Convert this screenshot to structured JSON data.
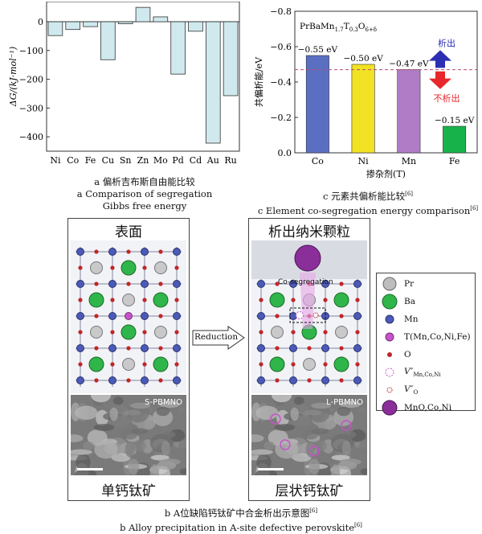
{
  "chart_a": {
    "type": "bar",
    "ylabel": "ΔG/(kJ·mol⁻¹)",
    "ylim": [
      -450,
      70
    ],
    "yticks": [
      0,
      -100,
      -200,
      -300,
      -400
    ],
    "categories": [
      "Ni",
      "Co",
      "Fe",
      "Cu",
      "Sn",
      "Zn",
      "Mo",
      "Pd",
      "Cd",
      "Au",
      "Ru"
    ],
    "values": [
      -48,
      -27,
      -17,
      -132,
      -7,
      50,
      17,
      -182,
      -33,
      -422,
      -257
    ],
    "bar_fill": "#cfe9ee",
    "caption_cn": "a  偏析吉布斯自由能比较",
    "caption_en": "a  Comparison of segregation",
    "caption_en2": "Gibbs free energy"
  },
  "chart_c": {
    "type": "bar",
    "ylabel": "共偏析能/eV",
    "xlabel": "掺杂剂(T)",
    "formula": "PrBaMn",
    "formula_sub1": "1.7",
    "formula_t": "T",
    "formula_sub2": "0.3",
    "formula_o": "O",
    "formula_sub3": "6+δ",
    "ylim": [
      0,
      -0.8
    ],
    "yticks": [
      -0.8,
      -0.6,
      -0.4,
      -0.2,
      0.0
    ],
    "ytick_labels": [
      "−0.8",
      "−0.6",
      "−0.4",
      "−0.2",
      "0.0"
    ],
    "categories": [
      "Co",
      "Ni",
      "Mn",
      "Fe"
    ],
    "values": [
      -0.55,
      -0.5,
      -0.47,
      -0.15
    ],
    "value_labels": [
      "−0.55 eV",
      "−0.50 eV",
      "−0.47 eV",
      "−0.15 eV"
    ],
    "colors": [
      "#5b6fc2",
      "#f1e323",
      "#b07cc6",
      "#18b24b"
    ],
    "threshold": -0.47,
    "arrow_up_label": "析出",
    "arrow_down_label": "不析出",
    "caption_cn": "c  元素共偏析能比较",
    "caption_cn_ref": "[6]",
    "caption_en": "c  Element co-segregation energy comparison",
    "caption_en_ref": "[6]"
  },
  "figure_b": {
    "left_title": "表面",
    "right_title": "析出纳米颗粒",
    "left_sem_label": "S-PBMNO",
    "right_sem_label": "L-PBMNO",
    "left_bottom": "单钙钛矿",
    "right_bottom": "层状钙钛矿",
    "arrow_label": "Reduction",
    "coseg_label": "Co-segregation",
    "legend": {
      "pr": "Pr",
      "ba": "Ba",
      "mn": "Mn",
      "t": "T(Mn,Co,Ni,Fe)",
      "o": "O",
      "v1": "V″",
      "v1_sub": "Mn,Co,Ni",
      "v2": "V″",
      "v2_sub": "O",
      "mno": "MnO,Co,Ni"
    },
    "caption_cn": "b  A位缺陷钙钛矿中合金析出示意图",
    "caption_cn_ref": "[6]",
    "caption_en": "b  Alloy precipitation in A-site defective perovskite",
    "caption_en_ref": "[6]"
  }
}
